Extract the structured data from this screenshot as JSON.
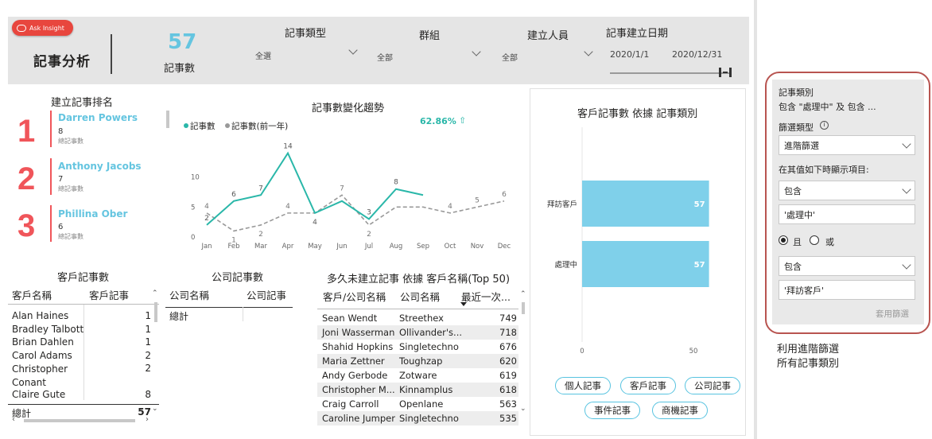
{
  "ask_insight": "Ask Insight",
  "header": {
    "title": "記事分析",
    "kpi_value": "57",
    "kpi_label": "記事數"
  },
  "slicers": [
    {
      "title": "記事類型",
      "value": "全選"
    },
    {
      "title": "群組",
      "value": "全部"
    },
    {
      "title": "建立人員",
      "value": "全部"
    }
  ],
  "date_slicer": {
    "title": "記事建立日期",
    "start": "2020/1/1",
    "end": "2020/12/31"
  },
  "ranking": {
    "title": "建立記事排名",
    "sub_label": "總記事數",
    "items": [
      {
        "rank": "1",
        "name": "Darren Powers",
        "count": "8"
      },
      {
        "rank": "2",
        "name": "Anthony Jacobs",
        "count": "7"
      },
      {
        "rank": "3",
        "name": "Phillina Ober",
        "count": "6"
      }
    ]
  },
  "trend": {
    "title": "記事數變化趨勢",
    "pct": "62.86%",
    "arrow": "⇧",
    "legend": [
      "記事數",
      "記事數(前一年)"
    ]
  },
  "chart_data": {
    "type": "line",
    "categories": [
      "Jan",
      "Feb",
      "Mar",
      "Apr",
      "May",
      "Jun",
      "Jul",
      "Aug",
      "Sep",
      "Oct",
      "Nov",
      "Dec"
    ],
    "series": [
      {
        "name": "記事數",
        "values": [
          2,
          6,
          7,
          14,
          4,
          6,
          3,
          8,
          7,
          null,
          null,
          null
        ],
        "color": "#2ab7a9"
      },
      {
        "name": "記事數(前一年)",
        "values": [
          4,
          1,
          2,
          4,
          4,
          7,
          2,
          5,
          5,
          4,
          5,
          6
        ],
        "color": "#999999"
      }
    ],
    "ylim": [
      0,
      15
    ],
    "yticks": [
      0,
      5,
      10
    ],
    "data_labels": {
      "current": [
        2,
        6,
        7,
        14,
        4,
        null,
        3,
        8,
        null,
        null,
        null,
        null
      ],
      "previous": [
        4,
        1,
        2,
        4,
        4,
        7,
        2,
        null,
        null,
        4,
        5,
        6
      ]
    }
  },
  "customer_table": {
    "title": "客戶記事數",
    "headers": [
      "客戶名稱",
      "客戶記事"
    ],
    "rows": [
      [
        "Alan Haines",
        "1"
      ],
      [
        "Bradley Talbott",
        "1"
      ],
      [
        "Brian Dahlen",
        "1"
      ],
      [
        "Carol Adams",
        "2"
      ],
      [
        "Christopher Conant",
        "2"
      ],
      [
        "Claire Gute",
        "8"
      ]
    ],
    "total_label": "總計",
    "total": "57"
  },
  "company_table": {
    "title": "公司記事數",
    "headers": [
      "公司名稱",
      "公司記事"
    ],
    "total_label": "總計"
  },
  "since_table": {
    "title": "多久未建立記事 依據 客戶名稱(Top 50)",
    "headers": [
      "客戶/公司名稱",
      "公司名稱",
      "最近一次..."
    ],
    "rows": [
      [
        "Sean Wendt",
        "Streethex",
        "749"
      ],
      [
        "Joni Wasserman",
        "Ollivander's...",
        "718"
      ],
      [
        "Shahid Hopkins",
        "Singletechno",
        "676"
      ],
      [
        "Maria Zettner",
        "Toughzap",
        "620"
      ],
      [
        "Andy Gerbode",
        "Zotware",
        "619"
      ],
      [
        "Christopher M...",
        "Kinnamplus",
        "618"
      ],
      [
        "Craig Carroll",
        "Openlane",
        "563"
      ],
      [
        "Caroline Jumper",
        "Singletechno",
        "535"
      ]
    ]
  },
  "bar_chart": {
    "title": "客戶記事數 依據 記事類別",
    "chart_data": {
      "type": "bar",
      "categories": [
        "拜訪客戶",
        "處理中"
      ],
      "values": [
        57,
        57
      ],
      "xlim": [
        0,
        60
      ],
      "xticks": [
        0,
        50
      ],
      "color": "#7fd0ea"
    },
    "buttons": [
      "個人記事",
      "客戶記事",
      "公司記事",
      "事件記事",
      "商機記事"
    ]
  },
  "filter_pane": {
    "field": "記事類別",
    "summary": "包含 \"處理中\" 及 包含 ...",
    "filter_type_label": "篩選類型",
    "filter_type": "進階篩選",
    "show_items_label": "在其值如下時顯示項目:",
    "cond1": "包含",
    "val1": "'處理中'",
    "and_label": "且",
    "or_label": "或",
    "cond2": "包含",
    "val2": "'拜訪客戶'",
    "apply": "套用篩選",
    "accent": "#b85450"
  },
  "caption": [
    "利用進階篩選",
    "所有記事類別"
  ]
}
